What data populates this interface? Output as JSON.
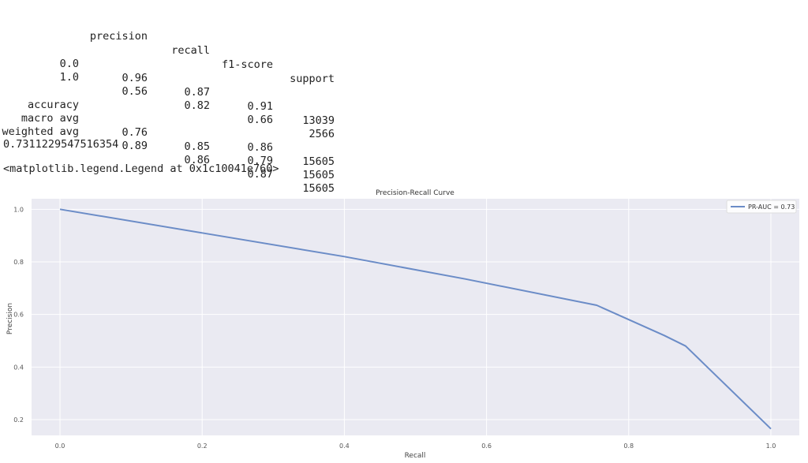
{
  "report": {
    "headers": [
      "precision",
      "recall",
      "f1-score",
      "support"
    ],
    "rows": [
      {
        "label": "0.0",
        "precision": "0.96",
        "recall": "0.87",
        "f1": "0.91",
        "support": "13039"
      },
      {
        "label": "1.0",
        "precision": "0.56",
        "recall": "0.82",
        "f1": "0.66",
        "support": "2566"
      },
      {
        "label": "accuracy",
        "precision": "",
        "recall": "",
        "f1": "0.86",
        "support": "15605"
      },
      {
        "label": "macro avg",
        "precision": "0.76",
        "recall": "0.85",
        "f1": "0.79",
        "support": "15605"
      },
      {
        "label": "weighted avg",
        "precision": "0.89",
        "recall": "0.86",
        "f1": "0.87",
        "support": "15605"
      }
    ]
  },
  "output": {
    "score": "0.7311229547516354",
    "legend_repr": "<matplotlib.legend.Legend at 0x1c10041e760>"
  },
  "chart_data": {
    "type": "line",
    "title": "Precision-Recall Curve",
    "xlabel": "Recall",
    "ylabel": "Precision",
    "xlim": [
      -0.04,
      1.04
    ],
    "ylim": [
      0.14,
      1.04
    ],
    "xticks": [
      "0.0",
      "0.2",
      "0.4",
      "0.6",
      "0.8",
      "1.0"
    ],
    "yticks": [
      "0.2",
      "0.4",
      "0.6",
      "0.8",
      "1.0"
    ],
    "grid": true,
    "legend": "top-right",
    "series": [
      {
        "name": "PR-AUC = 0.73",
        "color": "#6b8cc7",
        "x": [
          0.0,
          0.2,
          0.4,
          0.57,
          0.755,
          0.85,
          0.88,
          1.0
        ],
        "y": [
          1.0,
          0.91,
          0.82,
          0.735,
          0.635,
          0.52,
          0.48,
          0.165
        ]
      }
    ]
  }
}
